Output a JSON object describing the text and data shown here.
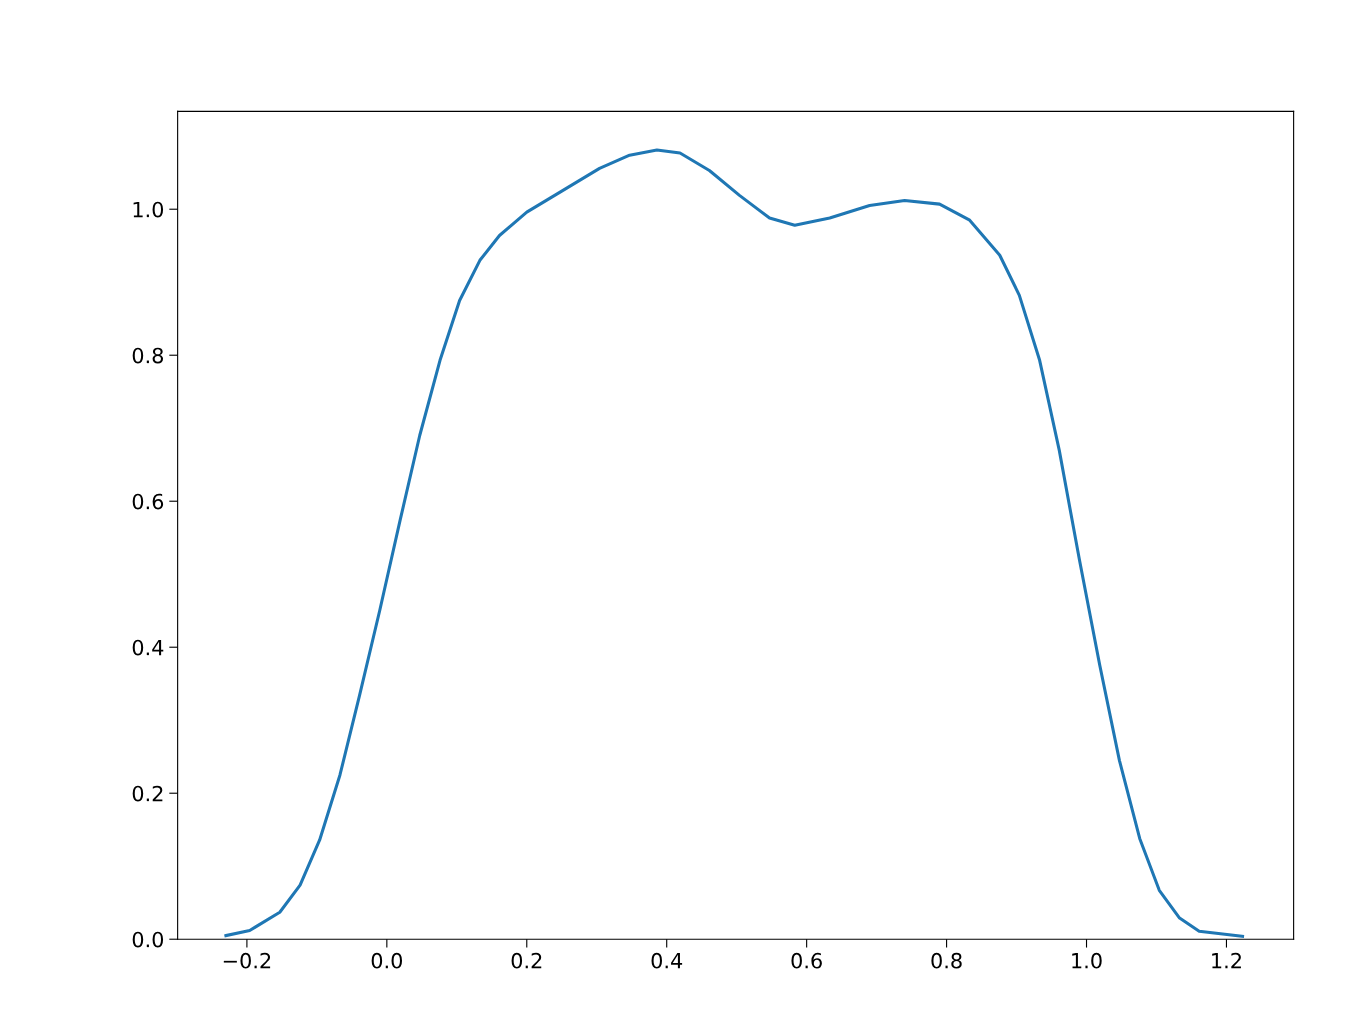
{
  "chart_data": {
    "type": "line",
    "x": [
      -0.23,
      -0.196,
      -0.153,
      -0.124,
      -0.096,
      -0.067,
      -0.039,
      -0.01,
      0.019,
      0.047,
      0.076,
      0.104,
      0.133,
      0.161,
      0.2,
      0.247,
      0.304,
      0.347,
      0.386,
      0.419,
      0.461,
      0.504,
      0.547,
      0.583,
      0.633,
      0.69,
      0.74,
      0.79,
      0.833,
      0.876,
      0.904,
      0.933,
      0.961,
      0.99,
      1.019,
      1.047,
      1.076,
      1.104,
      1.133,
      1.161,
      1.223
    ],
    "series": [
      {
        "color": "#1f77b4",
        "values": [
          0.005,
          0.012,
          0.037,
          0.074,
          0.136,
          0.225,
          0.334,
          0.451,
          0.574,
          0.69,
          0.793,
          0.875,
          0.93,
          0.964,
          0.996,
          1.023,
          1.056,
          1.074,
          1.081,
          1.077,
          1.053,
          1.019,
          0.988,
          0.978,
          0.988,
          1.005,
          1.012,
          1.007,
          0.985,
          0.937,
          0.882,
          0.793,
          0.67,
          0.519,
          0.375,
          0.245,
          0.138,
          0.067,
          0.029,
          0.011,
          0.004
        ]
      }
    ],
    "xlim": [
      -0.299,
      1.296
    ],
    "ylim": [
      0,
      1.134
    ],
    "xticks": [
      {
        "value": -0.2,
        "label": "−0.2"
      },
      {
        "value": 0.0,
        "label": "0.0"
      },
      {
        "value": 0.2,
        "label": "0.2"
      },
      {
        "value": 0.4,
        "label": "0.4"
      },
      {
        "value": 0.6,
        "label": "0.6"
      },
      {
        "value": 0.8,
        "label": "0.8"
      },
      {
        "value": 1.0,
        "label": "1.0"
      },
      {
        "value": 1.2,
        "label": "1.2"
      }
    ],
    "yticks": [
      {
        "value": 0.0,
        "label": "0.0"
      },
      {
        "value": 0.2,
        "label": "0.2"
      },
      {
        "value": 0.4,
        "label": "0.4"
      },
      {
        "value": 0.6,
        "label": "0.6"
      },
      {
        "value": 0.8,
        "label": "0.8"
      },
      {
        "value": 1.0,
        "label": "1.0"
      }
    ],
    "grid": false,
    "legend": false
  }
}
